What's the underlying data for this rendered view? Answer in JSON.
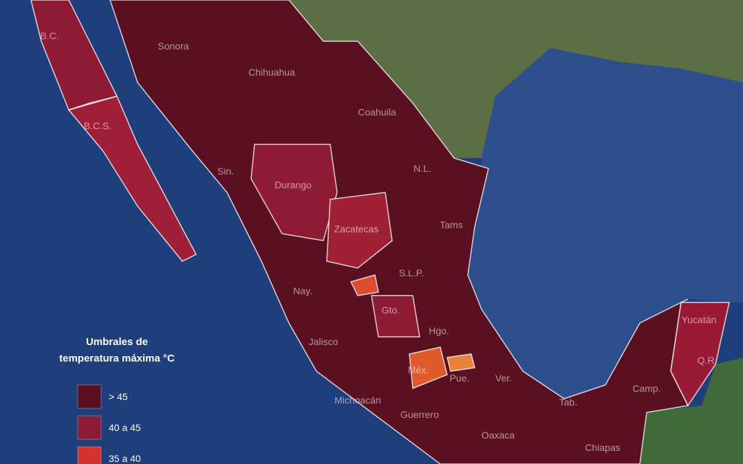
{
  "legend": {
    "title_line1": "Umbrales de",
    "title_line2": "temperatura máxima °C",
    "items": [
      {
        "label": "> 45",
        "color": "#5a1020"
      },
      {
        "label": "40 a 45",
        "color": "#8e1a34"
      },
      {
        "label": "35 a 40",
        "color": "#d6322e"
      }
    ]
  },
  "states": [
    "B.C.",
    "Sonora",
    "Chihuahua",
    "Coahuila",
    "B.C.S.",
    "Sin.",
    "Durango",
    "N.L.",
    "Tams",
    "Zacatecas",
    "S.L.P.",
    "Nay.",
    "Gto.",
    "Hgo.",
    "Jalisco",
    "Méx.",
    "Pue.",
    "Ver.",
    "Michoacán",
    "Guerrero",
    "Oaxaca",
    "Chiapas",
    "Tab.",
    "Camp.",
    "Yucatán",
    "Q.R."
  ]
}
